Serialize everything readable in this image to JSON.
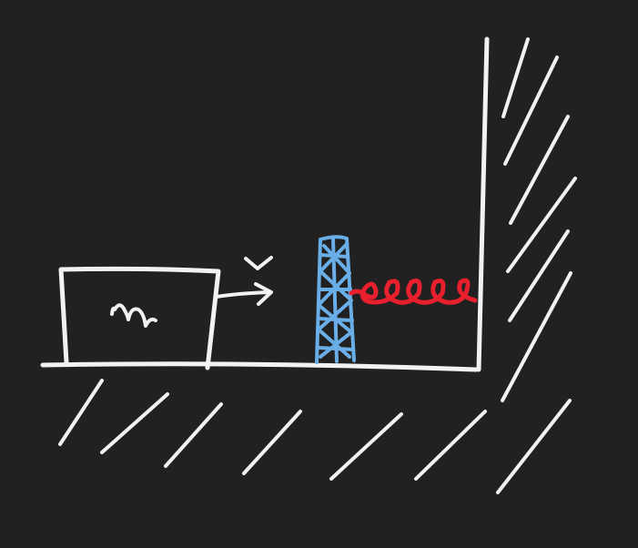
{
  "colors": {
    "background": "#212121",
    "chalk": "#f2f2f2",
    "spring": "#e8202e",
    "plate": "#6aaee8"
  },
  "labels": {
    "mass": "m",
    "velocity": "v"
  }
}
